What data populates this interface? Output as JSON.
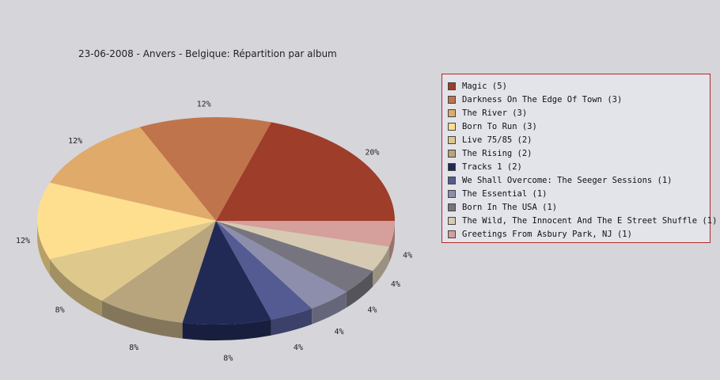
{
  "chart_data": {
    "type": "pie",
    "title": "23-06-2008 - Anvers - Belgique:  Répartition par album",
    "categories": [
      "Magic (5)",
      "Darkness On The Edge Of Town (3)",
      "The River (3)",
      "Born To Run (3)",
      "Live 75/85 (2)",
      "The Rising (2)",
      "Tracks 1 (2)",
      "We Shall Overcome: The Seeger Sessions (1)",
      "The Essential (1)",
      "Born In The USA (1)",
      "The Wild, The Innocent And The E Street Shuffle (1)",
      "Greetings From Asbury Park, NJ (1)"
    ],
    "values": [
      5,
      3,
      3,
      3,
      2,
      2,
      2,
      1,
      1,
      1,
      1,
      1
    ],
    "labels": [
      "20%",
      "12%",
      "12%",
      "12%",
      "8%",
      "8%",
      "8%",
      "4%",
      "4%",
      "4%",
      "4%",
      "4%"
    ],
    "colors": [
      "#9e3d2a",
      "#c0744b",
      "#e0aa6b",
      "#fedf90",
      "#dec88b",
      "#b8a47d",
      "#212a55",
      "#545a92",
      "#8d8eab",
      "#76757f",
      "#d6cab2",
      "#d59f9b"
    ],
    "legend_position": "right"
  }
}
